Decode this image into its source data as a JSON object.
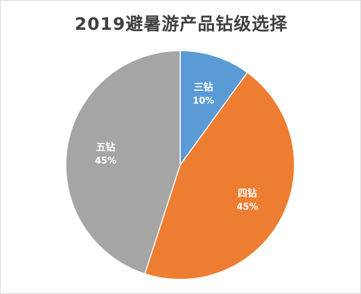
{
  "chart_data": {
    "type": "pie",
    "title": "2019避暑游产品钻级选择",
    "slices": [
      {
        "label": "三钻",
        "value": 10,
        "display": "10%",
        "color": "#5b9bd5"
      },
      {
        "label": "四钻",
        "value": 45,
        "display": "45%",
        "color": "#ed7d31"
      },
      {
        "label": "五钻",
        "value": 45,
        "display": "45%",
        "color": "#a5a5a5"
      }
    ]
  }
}
